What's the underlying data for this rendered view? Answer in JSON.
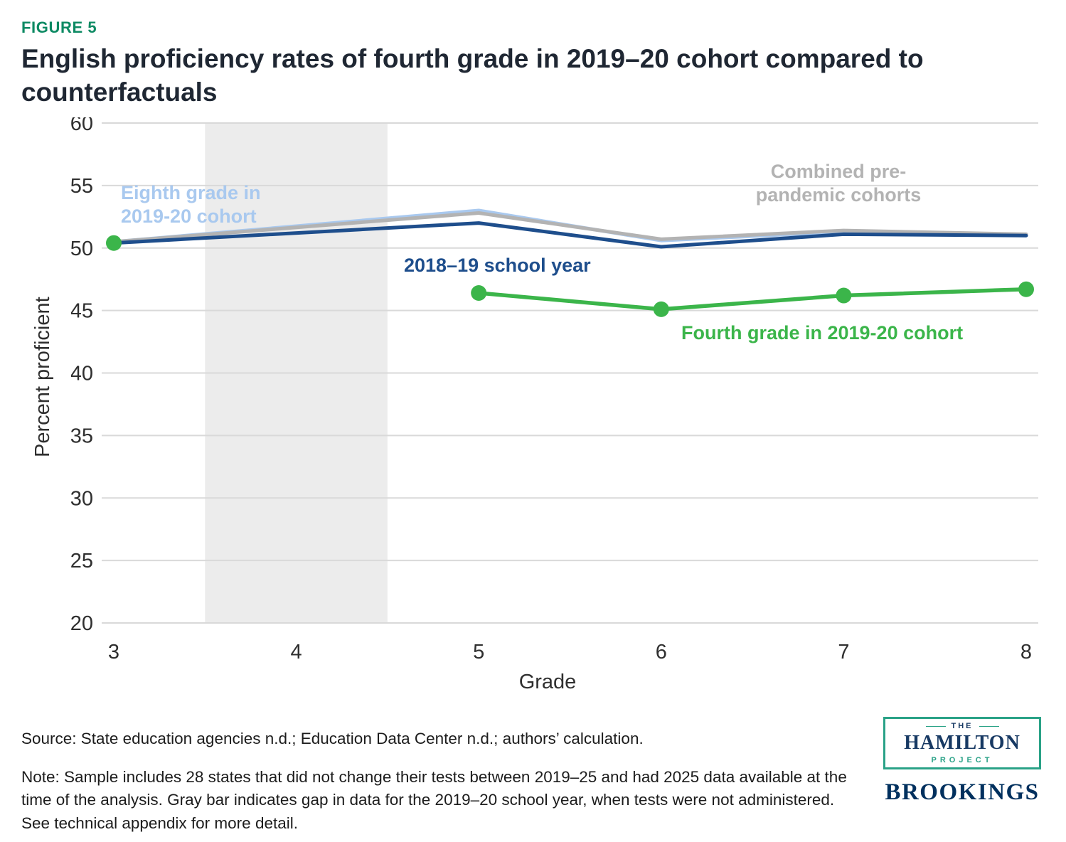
{
  "figure": {
    "label": "FIGURE 5"
  },
  "title": "English proficiency rates of fourth grade in 2019–20 cohort compared to counterfactuals",
  "chart_data": {
    "type": "line",
    "title": "English proficiency rates of fourth grade in 2019–20 cohort compared to counterfactuals",
    "xlabel": "Grade",
    "ylabel": "Percent proficient",
    "xlim": [
      3,
      8
    ],
    "ylim": [
      20,
      60
    ],
    "x_ticks": [
      3,
      4,
      5,
      6,
      7,
      8
    ],
    "y_ticks": [
      20,
      25,
      30,
      35,
      40,
      45,
      50,
      55,
      60
    ],
    "grid": true,
    "grid_color": "#d9d9d9",
    "tick_color": "#2f2f2f",
    "gap_band": {
      "x_start": 3.5,
      "x_end": 4.5,
      "color": "#ececec",
      "meaning": "Gap in data for the 2019–20 school year, when tests were not administered"
    },
    "series": [
      {
        "name": "Eighth grade in 2019-20 cohort",
        "color": "#a9c9ef",
        "markers": false,
        "x": [
          3,
          5,
          6,
          7,
          8
        ],
        "values": [
          50.5,
          53.0,
          50.6,
          51.3,
          51.0
        ]
      },
      {
        "name": "Combined pre-pandemic cohorts",
        "color": "#b3b3b3",
        "markers": false,
        "x": [
          3,
          5,
          6,
          7,
          8
        ],
        "values": [
          50.5,
          52.8,
          50.7,
          51.4,
          51.1
        ]
      },
      {
        "name": "2018–19 school year",
        "color": "#1e4e8c",
        "markers": false,
        "x": [
          3,
          5,
          6,
          7,
          8
        ],
        "values": [
          50.4,
          52.0,
          50.1,
          51.1,
          51.0
        ]
      },
      {
        "name": "Fourth grade in 2019-20 cohort",
        "color": "#3bb54a",
        "markers": true,
        "x": [
          3,
          4,
          5,
          6,
          7,
          8
        ],
        "values": [
          50.4,
          null,
          46.4,
          45.1,
          46.2,
          46.7
        ]
      }
    ],
    "annotations": [
      {
        "text": "Eighth grade in 2019-20 cohort",
        "color": "#a9c9ef"
      },
      {
        "text": "Combined pre-pandemic cohorts",
        "color": "#b3b3b3"
      },
      {
        "text": "2018–19 school year",
        "color": "#1e4e8c"
      },
      {
        "text": "Fourth grade in 2019-20 cohort",
        "color": "#3bb54a"
      }
    ],
    "legend_position": "in-plot labels"
  },
  "source": "Source: State education agencies n.d.; Education Data Center n.d.; authors’ calculation.",
  "note": "Note: Sample includes 28 states that did not change their tests between 2019–25 and had 2025 data available at the time of the analysis. Gray bar indicates gap in data for the 2019–20 school year, when tests were not administered. See technical appendix for more detail.",
  "logos": {
    "hamilton": {
      "the": "THE",
      "name": "HAMILTON",
      "project": "PROJECT"
    },
    "brookings": "BROOKINGS"
  }
}
